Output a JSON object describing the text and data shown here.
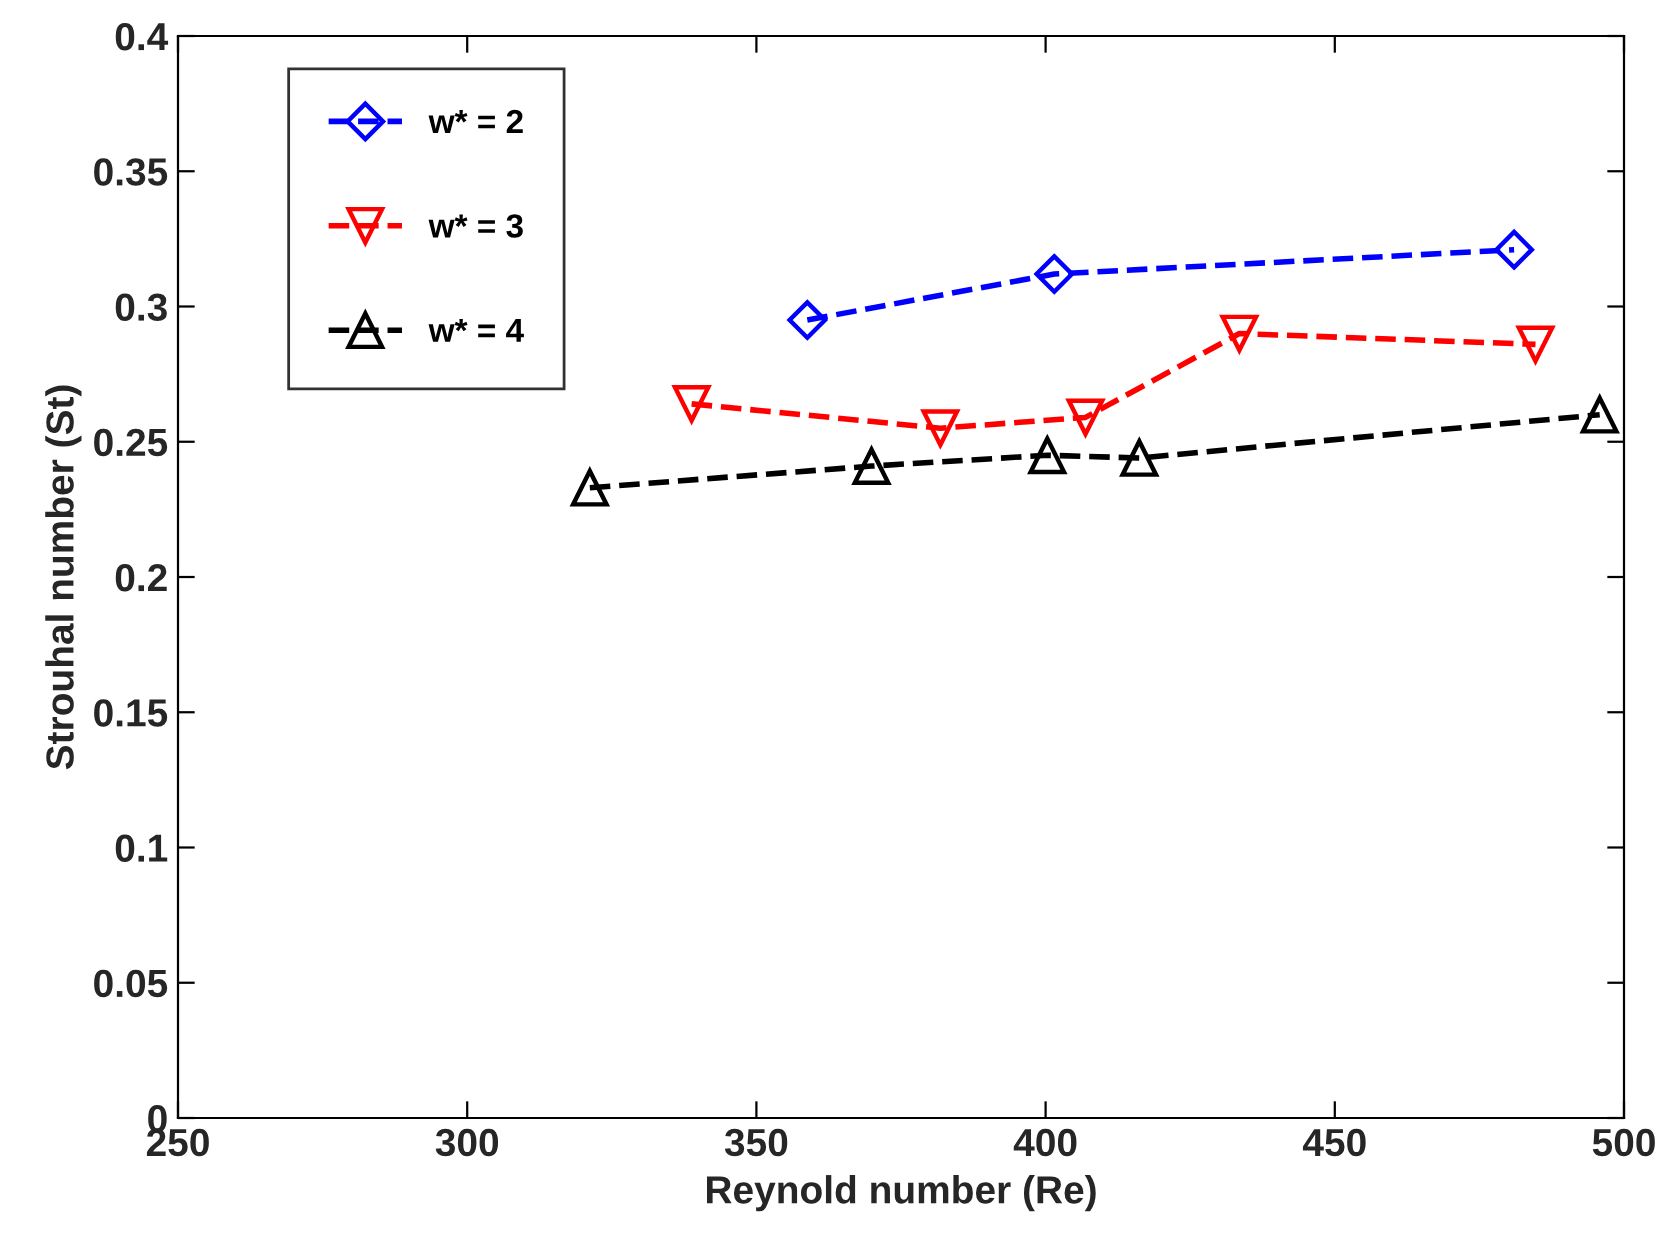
{
  "chart_data": {
    "type": "line",
    "xlabel": "Reynold number (Re)",
    "ylabel": "Strouhal number (St)",
    "xlim": [
      250,
      500
    ],
    "xticks": [
      250,
      300,
      350,
      400,
      450,
      500
    ],
    "ylim": [
      0,
      0.4
    ],
    "yticks": [
      0,
      0.05,
      0.1,
      0.15,
      0.2,
      0.25,
      0.3,
      0.35,
      0.4
    ],
    "grid": false,
    "legend": "upper left",
    "line_style": "dashed",
    "series": [
      {
        "name": "w* = 2",
        "color": "#0000ff",
        "marker": "diamond",
        "x": [
          358.8,
          401.5,
          481
        ],
        "values": [
          0.295,
          0.312,
          0.321
        ]
      },
      {
        "name": "w* = 3",
        "color": "#ff0000",
        "marker": "triangle_down",
        "x": [
          338.8,
          381.8,
          406.9,
          433.5,
          484.7
        ],
        "values": [
          0.264,
          0.255,
          0.259,
          0.29,
          0.286
        ]
      },
      {
        "name": "w* = 4",
        "color": "#000000",
        "marker": "triangle",
        "x": [
          321.2,
          369.9,
          400.3,
          416.2,
          495.8
        ],
        "values": [
          0.233,
          0.241,
          0.245,
          0.244,
          0.26
        ]
      }
    ]
  }
}
